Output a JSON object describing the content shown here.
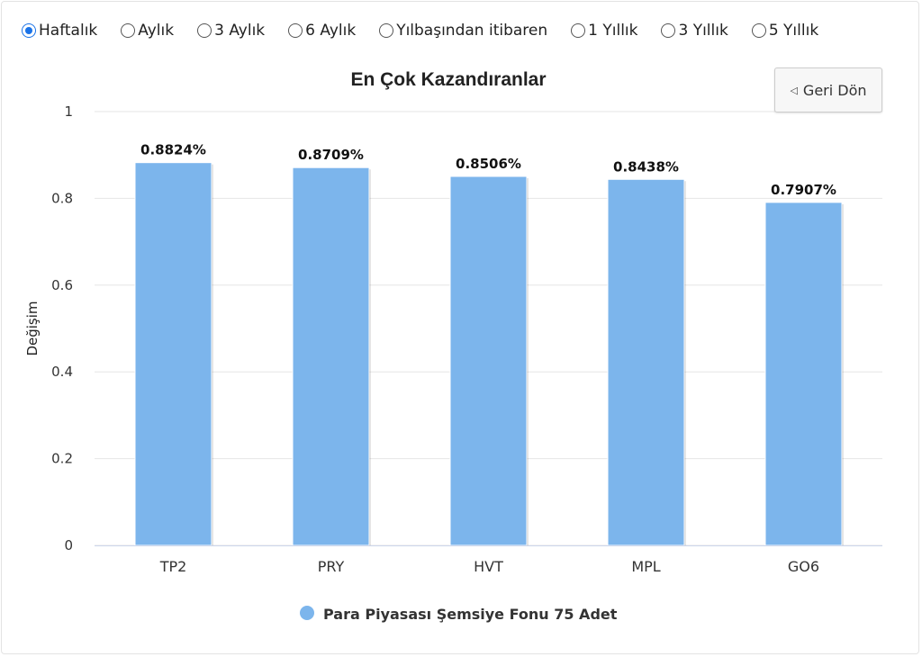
{
  "period_options": [
    {
      "label": "Haftalık",
      "selected": true
    },
    {
      "label": "Aylık",
      "selected": false
    },
    {
      "label": "3 Aylık",
      "selected": false
    },
    {
      "label": "6 Aylık",
      "selected": false
    },
    {
      "label": "Yılbaşından itibaren",
      "selected": false
    },
    {
      "label": "1 Yıllık",
      "selected": false
    },
    {
      "label": "3 Yıllık",
      "selected": false
    },
    {
      "label": "5 Yıllık",
      "selected": false
    }
  ],
  "back_button": {
    "label": "Geri Dön",
    "icon": "triangle-left-icon"
  },
  "chart_data": {
    "type": "bar",
    "title": "En Çok Kazandıranlar",
    "xlabel": "",
    "ylabel": "Değişim",
    "ylim": [
      0,
      1
    ],
    "yticks": [
      "0",
      "0.2",
      "0.4",
      "0.6",
      "0.8",
      "1"
    ],
    "categories": [
      "TP2",
      "PRY",
      "HVT",
      "MPL",
      "GO6"
    ],
    "series": [
      {
        "name": "Para Piyasası Şemsiye Fonu 75 Adet",
        "values": [
          0.8824,
          0.8709,
          0.8506,
          0.8438,
          0.7907
        ],
        "labels": [
          "0.8824%",
          "0.8709%",
          "0.8506%",
          "0.8438%",
          "0.7907%"
        ],
        "color": "#7cb5ec"
      }
    ],
    "legend": "bottom-center",
    "grid": true
  }
}
